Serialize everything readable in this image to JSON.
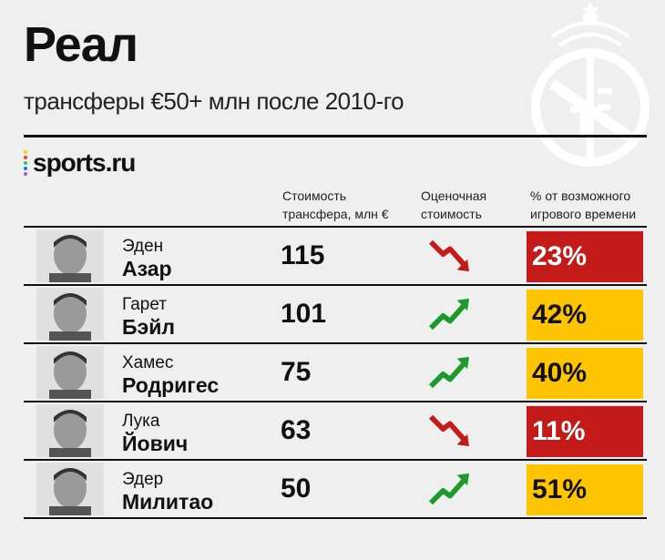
{
  "header": {
    "title": "Реал",
    "subtitle": "трансферы €50+ млн после 2010-го"
  },
  "brand": {
    "name": "sports.ru",
    "dot_colors": [
      "#ffcc00",
      "#ff3b30",
      "#34c759",
      "#007aff",
      "#af52de"
    ]
  },
  "columns": {
    "cost": [
      "Стоимость",
      "трансфера, млн €"
    ],
    "estimate": [
      "Оценочная",
      "стоимость"
    ],
    "playtime": [
      "% от возможного",
      "игрового времени"
    ]
  },
  "colors": {
    "red": "#c41a1a",
    "yellow": "#ffc400",
    "arrow_up": "#1e9a2a",
    "arrow_down": "#c41a1a"
  },
  "players": [
    {
      "first": "Эден",
      "last": "Азар",
      "cost": "115",
      "trend": "down",
      "pct": "23%",
      "level": "red"
    },
    {
      "first": "Гарет",
      "last": "Бэйл",
      "cost": "101",
      "trend": "up",
      "pct": "42%",
      "level": "yellow"
    },
    {
      "first": "Хамес",
      "last": "Родригес",
      "cost": "75",
      "trend": "up",
      "pct": "40%",
      "level": "yellow"
    },
    {
      "first": "Лука",
      "last": "Йович",
      "cost": "63",
      "trend": "down",
      "pct": "11%",
      "level": "red"
    },
    {
      "first": "Эдер",
      "last": "Милитао",
      "cost": "50",
      "trend": "up",
      "pct": "51%",
      "level": "yellow"
    }
  ]
}
